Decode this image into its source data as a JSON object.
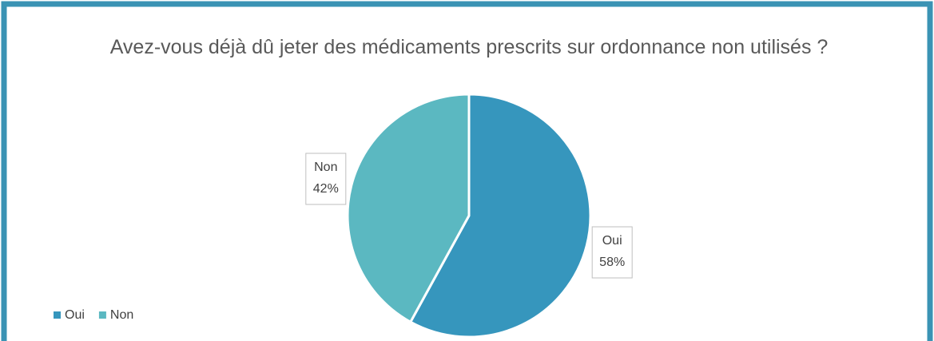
{
  "chart_data": {
    "type": "pie",
    "title": "Avez-vous déjà dû jeter des médicaments prescrits sur ordonnance non utilisés ?",
    "categories": [
      "Oui",
      "Non"
    ],
    "values": [
      58,
      42
    ],
    "value_labels": [
      "58%",
      "42%"
    ],
    "colors": [
      "#3696bd",
      "#5bb8c1"
    ],
    "legend": "bottom-left"
  }
}
